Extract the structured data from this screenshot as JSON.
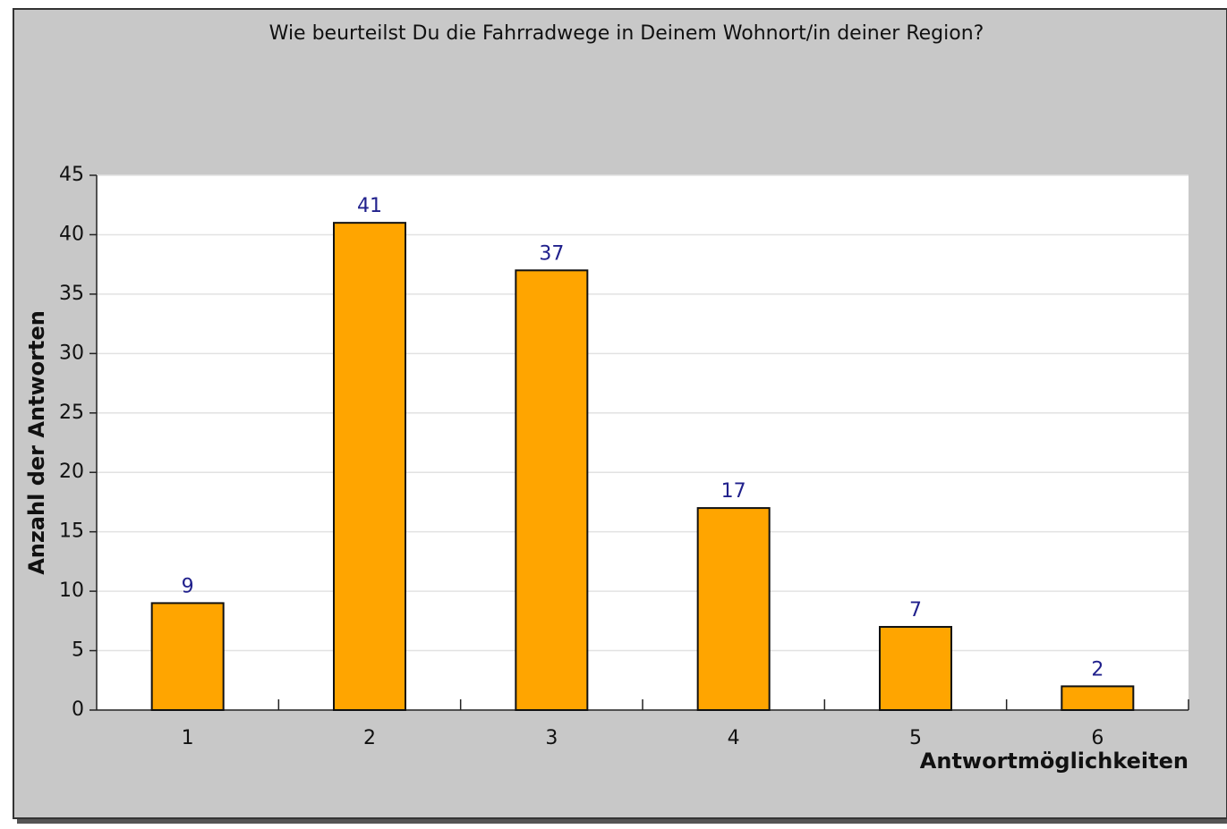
{
  "chart_data": {
    "type": "bar",
    "title": "Wie beurteilst Du die Fahrradwege in Deinem Wohnort/in deiner Region?",
    "x_label": "Antwortmöglichkeiten",
    "y_label": "Anzahl der Antworten",
    "categories": [
      "1",
      "2",
      "3",
      "4",
      "5",
      "6"
    ],
    "values": [
      9,
      41,
      37,
      17,
      7,
      2
    ],
    "color": "#ffa500",
    "value_label_color": "#20208c",
    "ylim": [
      0,
      45
    ],
    "yticks": [
      0,
      5,
      10,
      15,
      20,
      25,
      30,
      35,
      40,
      45
    ],
    "grid": true
  }
}
